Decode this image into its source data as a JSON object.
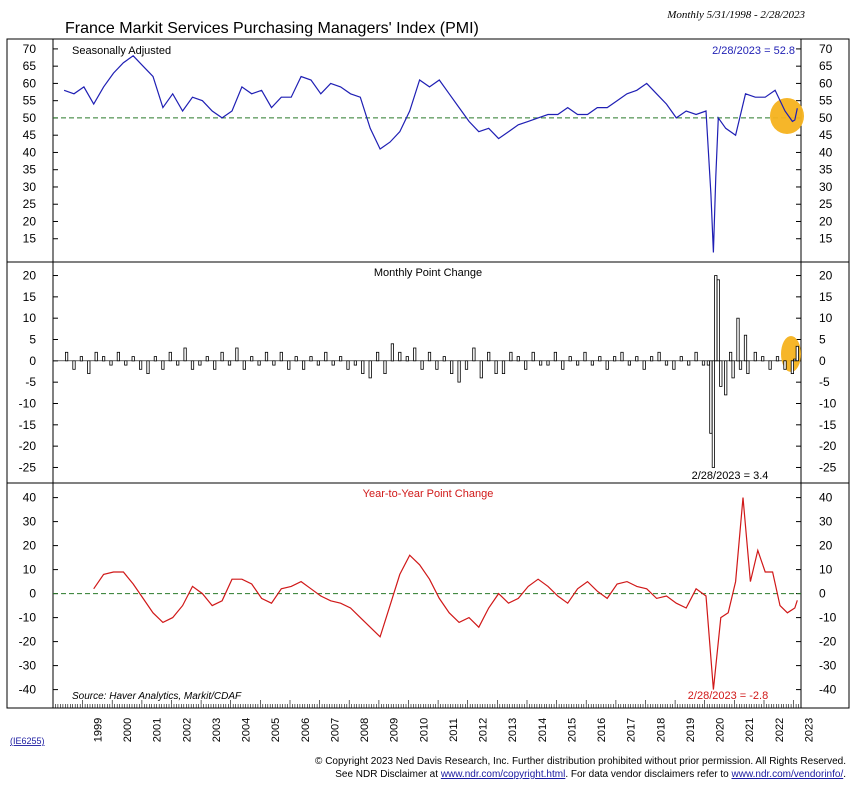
{
  "title": "France Markit Services Purchasing Managers' Index (PMI)",
  "date_range": "Monthly 5/31/1998 - 2/28/2023",
  "chart_id": "(IE6255)",
  "source": "Source: Haver Analytics, Markit/CDAF",
  "copyright_line1": "© Copyright 2023 Ned Davis Research, Inc.  Further distribution prohibited without prior permission.  All Rights Reserved.",
  "copyright_line2_pre": "See NDR Disclaimer at ",
  "copyright_link1": "www.ndr.com/copyright.html",
  "copyright_line2_mid": ".  For data vendor disclaimers refer to ",
  "copyright_link2": "www.ndr.com/vendorinfo/",
  "copyright_line2_post": ".",
  "colors": {
    "pmi": "#1f1fb4",
    "change": "#000000",
    "yoy": "#d01818",
    "highlight": "#f5b21e",
    "reference": "#2a7a2a"
  },
  "chart_data": [
    {
      "type": "line",
      "label": "Seasonally Adjusted",
      "last_value_label": "2/28/2023 = 52.8",
      "y_ticks": [
        15,
        20,
        25,
        30,
        35,
        40,
        45,
        50,
        55,
        60,
        65,
        70
      ],
      "ylim": [
        10,
        72
      ],
      "reference_line": 50,
      "x": [
        "1998-05",
        "1998-09",
        "1999-01",
        "1999-05",
        "1999-09",
        "2000-01",
        "2000-05",
        "2000-09",
        "2001-01",
        "2001-05",
        "2001-09",
        "2002-01",
        "2002-05",
        "2002-09",
        "2003-01",
        "2003-05",
        "2003-09",
        "2004-01",
        "2004-05",
        "2004-09",
        "2005-01",
        "2005-05",
        "2005-09",
        "2006-01",
        "2006-05",
        "2006-09",
        "2007-01",
        "2007-05",
        "2007-09",
        "2008-01",
        "2008-05",
        "2008-09",
        "2009-01",
        "2009-05",
        "2009-09",
        "2010-01",
        "2010-05",
        "2010-09",
        "2011-01",
        "2011-05",
        "2011-09",
        "2012-01",
        "2012-05",
        "2012-09",
        "2013-01",
        "2013-05",
        "2013-09",
        "2014-01",
        "2014-05",
        "2014-09",
        "2015-01",
        "2015-05",
        "2015-09",
        "2016-01",
        "2016-05",
        "2016-09",
        "2017-01",
        "2017-05",
        "2017-09",
        "2018-01",
        "2018-05",
        "2018-09",
        "2019-01",
        "2019-05",
        "2019-09",
        "2020-01",
        "2020-03",
        "2020-04",
        "2020-05",
        "2020-06",
        "2020-09",
        "2021-01",
        "2021-05",
        "2021-09",
        "2022-01",
        "2022-05",
        "2022-09",
        "2022-12",
        "2023-01",
        "2023-02"
      ],
      "values": [
        58,
        57,
        59,
        54,
        59,
        63,
        66,
        68,
        65,
        62,
        53,
        57,
        52,
        56,
        55,
        52,
        50,
        52,
        59,
        57,
        58,
        53,
        56,
        56,
        62,
        61,
        57,
        60,
        59,
        57,
        56,
        47,
        41,
        43,
        46,
        52,
        61,
        59,
        61,
        57,
        53,
        49,
        46,
        47,
        44,
        46,
        48,
        49,
        50,
        51,
        51,
        53,
        51,
        51,
        53,
        53,
        55,
        57,
        58,
        60,
        57,
        54,
        50,
        52,
        51,
        52,
        28,
        11,
        33,
        50,
        47,
        45,
        57,
        56,
        56,
        58,
        52,
        49,
        49.4,
        52.8
      ]
    },
    {
      "type": "bar",
      "label": "Monthly Point Change",
      "last_value_label": "2/28/2023 = 3.4",
      "y_ticks": [
        -25,
        -20,
        -15,
        -10,
        -5,
        0,
        5,
        10,
        15,
        20
      ],
      "ylim": [
        -27,
        22
      ],
      "x": [
        "1998-06",
        "1998-09",
        "1998-12",
        "1999-03",
        "1999-06",
        "1999-09",
        "1999-12",
        "2000-03",
        "2000-06",
        "2000-09",
        "2000-12",
        "2001-03",
        "2001-06",
        "2001-09",
        "2001-12",
        "2002-03",
        "2002-06",
        "2002-09",
        "2002-12",
        "2003-03",
        "2003-06",
        "2003-09",
        "2003-12",
        "2004-03",
        "2004-06",
        "2004-09",
        "2004-12",
        "2005-03",
        "2005-06",
        "2005-09",
        "2005-12",
        "2006-03",
        "2006-06",
        "2006-09",
        "2006-12",
        "2007-03",
        "2007-06",
        "2007-09",
        "2007-12",
        "2008-03",
        "2008-06",
        "2008-09",
        "2008-12",
        "2009-03",
        "2009-06",
        "2009-09",
        "2009-12",
        "2010-03",
        "2010-06",
        "2010-09",
        "2010-12",
        "2011-03",
        "2011-06",
        "2011-09",
        "2011-12",
        "2012-03",
        "2012-06",
        "2012-09",
        "2012-12",
        "2013-03",
        "2013-06",
        "2013-09",
        "2013-12",
        "2014-03",
        "2014-06",
        "2014-09",
        "2014-12",
        "2015-03",
        "2015-06",
        "2015-09",
        "2015-12",
        "2016-03",
        "2016-06",
        "2016-09",
        "2016-12",
        "2017-03",
        "2017-06",
        "2017-09",
        "2017-12",
        "2018-03",
        "2018-06",
        "2018-09",
        "2018-12",
        "2019-03",
        "2019-06",
        "2019-09",
        "2019-12",
        "2020-02",
        "2020-03",
        "2020-04",
        "2020-05",
        "2020-06",
        "2020-07",
        "2020-09",
        "2020-11",
        "2020-12",
        "2021-02",
        "2021-03",
        "2021-05",
        "2021-06",
        "2021-09",
        "2021-12",
        "2022-03",
        "2022-06",
        "2022-09",
        "2022-12",
        "2023-01",
        "2023-02"
      ],
      "values": [
        2,
        -2,
        1,
        -3,
        2,
        1,
        -1,
        2,
        -1,
        1,
        -2,
        -3,
        1,
        -2,
        2,
        -1,
        3,
        -2,
        -1,
        1,
        -2,
        2,
        -1,
        3,
        -2,
        1,
        -1,
        2,
        -1,
        2,
        -2,
        1,
        -2,
        1,
        -1,
        2,
        -1,
        1,
        -2,
        -1,
        -3,
        -4,
        2,
        -3,
        4,
        2,
        1,
        3,
        -2,
        2,
        -2,
        1,
        -3,
        -5,
        -2,
        3,
        -4,
        2,
        -3,
        -3,
        2,
        1,
        -2,
        2,
        -1,
        -1,
        2,
        -2,
        1,
        -1,
        2,
        -1,
        1,
        -2,
        1,
        2,
        -1,
        1,
        -2,
        1,
        2,
        -1,
        -2,
        1,
        -1,
        2,
        -1,
        -1,
        -17,
        -25,
        20,
        19,
        -6,
        -8,
        2,
        -4,
        10,
        -2,
        6,
        -3,
        2,
        1,
        -2,
        1,
        -2,
        -3,
        0.4,
        3.4
      ]
    },
    {
      "type": "line",
      "label": "Year-to-Year Point Change",
      "last_value_label": "2/28/2023 = -2.8",
      "y_ticks": [
        -40,
        -30,
        -20,
        -10,
        0,
        10,
        20,
        30,
        40
      ],
      "ylim": [
        -46,
        44
      ],
      "reference_line": 0,
      "x": [
        "1999-05",
        "1999-09",
        "2000-01",
        "2000-05",
        "2000-09",
        "2001-01",
        "2001-05",
        "2001-09",
        "2002-01",
        "2002-05",
        "2002-09",
        "2003-01",
        "2003-05",
        "2003-09",
        "2004-01",
        "2004-05",
        "2004-09",
        "2005-01",
        "2005-05",
        "2005-09",
        "2006-01",
        "2006-05",
        "2006-09",
        "2007-01",
        "2007-05",
        "2007-09",
        "2008-01",
        "2008-05",
        "2008-09",
        "2009-01",
        "2009-05",
        "2009-09",
        "2010-01",
        "2010-05",
        "2010-09",
        "2011-01",
        "2011-05",
        "2011-09",
        "2012-01",
        "2012-05",
        "2012-09",
        "2013-01",
        "2013-05",
        "2013-09",
        "2014-01",
        "2014-05",
        "2014-09",
        "2015-01",
        "2015-05",
        "2015-09",
        "2016-01",
        "2016-05",
        "2016-09",
        "2017-01",
        "2017-05",
        "2017-09",
        "2018-01",
        "2018-05",
        "2018-09",
        "2019-01",
        "2019-05",
        "2019-09",
        "2020-01",
        "2020-04",
        "2020-07",
        "2020-10",
        "2021-01",
        "2021-04",
        "2021-07",
        "2021-10",
        "2022-01",
        "2022-04",
        "2022-07",
        "2022-10",
        "2023-01",
        "2023-02"
      ],
      "values": [
        2,
        8,
        9,
        9,
        4,
        -2,
        -8,
        -12,
        -10,
        -5,
        3,
        0,
        -5,
        -3,
        6,
        6,
        4,
        -2,
        -4,
        2,
        3,
        5,
        2,
        -1,
        -3,
        -4,
        -6,
        -10,
        -14,
        -18,
        -5,
        8,
        16,
        12,
        6,
        -2,
        -8,
        -12,
        -10,
        -14,
        -6,
        0,
        -4,
        -2,
        3,
        6,
        3,
        -1,
        -4,
        2,
        5,
        1,
        -2,
        4,
        5,
        3,
        2,
        -2,
        -1,
        -4,
        -6,
        2,
        -1,
        -40,
        -10,
        -8,
        5,
        40,
        5,
        18,
        9,
        9,
        -5,
        -8,
        -6,
        -2.8
      ]
    }
  ],
  "x_axis_years": [
    "1999",
    "2000",
    "2001",
    "2002",
    "2003",
    "2004",
    "2005",
    "2006",
    "2007",
    "2008",
    "2009",
    "2010",
    "2011",
    "2012",
    "2013",
    "2014",
    "2015",
    "2016",
    "2017",
    "2018",
    "2019",
    "2020",
    "2021",
    "2022",
    "2023"
  ]
}
